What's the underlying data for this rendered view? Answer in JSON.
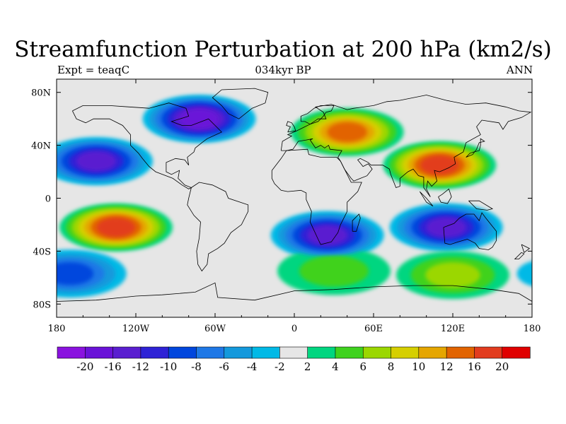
{
  "plot": {
    "title": "Streamfunction Perturbation at 200 hPa (km2/s)",
    "left_label": "Expt = teaqC",
    "center_label": "034kyr BP",
    "right_label": "ANN"
  },
  "map": {
    "projection": "cylindrical-equidistant",
    "lon_range": [
      -180,
      180
    ],
    "lat_range": [
      -90,
      90
    ],
    "x_ticks": [
      {
        "value": -180,
        "label": "180"
      },
      {
        "value": -120,
        "label": "120W"
      },
      {
        "value": -60,
        "label": "60W"
      },
      {
        "value": 0,
        "label": "0"
      },
      {
        "value": 60,
        "label": "60E"
      },
      {
        "value": 120,
        "label": "120E"
      },
      {
        "value": 180,
        "label": "180"
      }
    ],
    "y_ticks": [
      {
        "value": 80,
        "label": "80N"
      },
      {
        "value": 40,
        "label": "40N"
      },
      {
        "value": 0,
        "label": "0"
      },
      {
        "value": -40,
        "label": "40S"
      },
      {
        "value": -80,
        "label": "80S"
      }
    ],
    "background_color": "#e6e6e6",
    "coastline_color": "#000000"
  },
  "colorbar": {
    "levels": [
      -20,
      -16,
      -12,
      -10,
      -8,
      -6,
      -4,
      -2,
      2,
      4,
      6,
      8,
      10,
      12,
      16,
      20
    ],
    "colors": [
      "#8a12df",
      "#6a12d8",
      "#5a1ed0",
      "#2e22d6",
      "#0046dd",
      "#1e78e6",
      "#1499dc",
      "#00b9e6",
      "#e6e6e6",
      "#00d680",
      "#3fd21e",
      "#9bd700",
      "#d6cf00",
      "#e5a600",
      "#e26400",
      "#e23c1e",
      "#e00000"
    ]
  },
  "chart_data": {
    "type": "heatmap",
    "variable": "Streamfunction Perturbation at 200 hPa",
    "units": "km2/s",
    "regions": [
      {
        "lon": 110,
        "lat": 25,
        "value": 18
      },
      {
        "lon": 40,
        "lat": 50,
        "value": 13
      },
      {
        "lon": -135,
        "lat": -22,
        "value": 18
      },
      {
        "lon": -72,
        "lat": 60,
        "value": -17
      },
      {
        "lon": -150,
        "lat": 28,
        "value": -14
      },
      {
        "lon": 25,
        "lat": -28,
        "value": -15
      },
      {
        "lon": 115,
        "lat": -22,
        "value": -14
      },
      {
        "lon": 30,
        "lat": -55,
        "value": 5
      },
      {
        "lon": 120,
        "lat": -58,
        "value": 6
      },
      {
        "lon": -170,
        "lat": -57,
        "value": -8
      }
    ]
  }
}
